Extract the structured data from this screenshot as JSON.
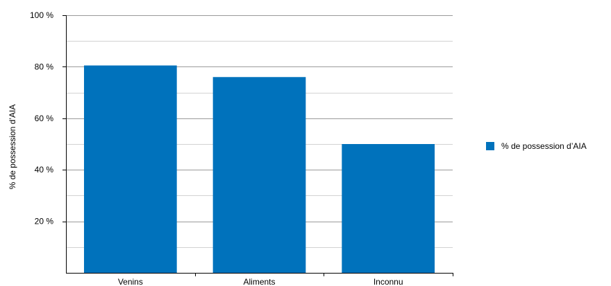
{
  "chart_data": {
    "type": "bar",
    "title": "",
    "xlabel": "",
    "ylabel": "% de possession d’AIA",
    "categories": [
      "Venins",
      "Aliments",
      "Inconnu"
    ],
    "series": [
      {
        "name": "% de possession d’AIA",
        "values": [
          80.5,
          76,
          50
        ],
        "color": "#0072BC"
      }
    ],
    "ylim": [
      0,
      100
    ],
    "yticks": [
      {
        "value": 20,
        "label": "20 %"
      },
      {
        "value": 40,
        "label": "40 %"
      },
      {
        "value": 60,
        "label": "60 %"
      },
      {
        "value": 80,
        "label": "80 %"
      },
      {
        "value": 100,
        "label": "100 %"
      }
    ],
    "minor_grid_step": 10,
    "grid": true,
    "legend_position": "right"
  }
}
